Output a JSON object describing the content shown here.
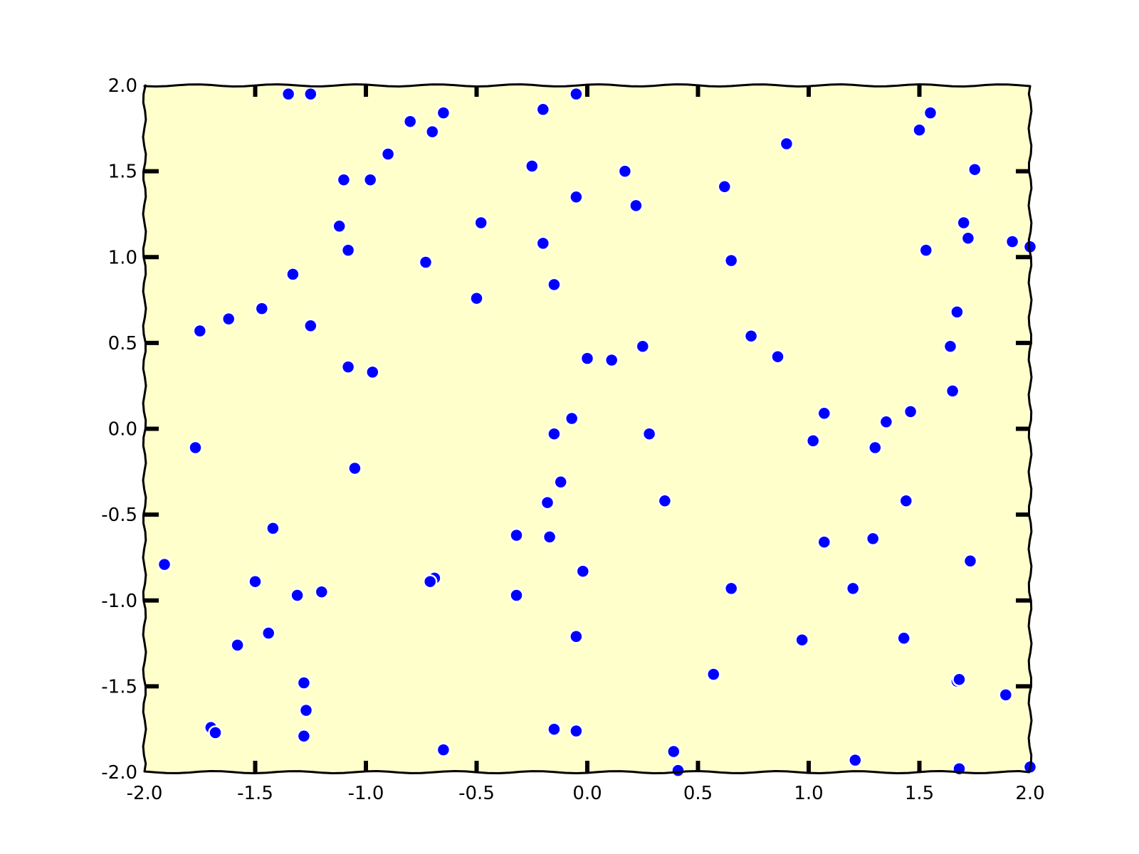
{
  "chart_data": {
    "type": "scatter",
    "title": "",
    "xlabel": "",
    "ylabel": "",
    "xlim": [
      -2.0,
      2.0
    ],
    "ylim": [
      -2.0,
      2.0
    ],
    "grid": false,
    "legend": "none",
    "colors": {
      "background": "#ffffcc",
      "marker": "#0000ff",
      "marker_edge": "#ffffff",
      "axes": "#000000"
    },
    "x_ticks": [
      "-2.0",
      "-1.5",
      "-1.0",
      "-0.5",
      "0.0",
      "0.5",
      "1.0",
      "1.5",
      "2.0"
    ],
    "y_ticks": [
      "-2.0",
      "-1.5",
      "-1.0",
      "-0.5",
      "0.0",
      "0.5",
      "1.0",
      "1.5",
      "2.0"
    ],
    "series": [
      {
        "points": [
          [
            -1.35,
            1.95
          ],
          [
            -1.25,
            1.95
          ],
          [
            -0.05,
            1.95
          ],
          [
            -0.8,
            1.79
          ],
          [
            -0.7,
            1.73
          ],
          [
            -0.65,
            1.84
          ],
          [
            -0.2,
            1.86
          ],
          [
            -0.9,
            1.6
          ],
          [
            -1.1,
            1.45
          ],
          [
            -0.98,
            1.45
          ],
          [
            -0.25,
            1.53
          ],
          [
            0.17,
            1.5
          ],
          [
            0.62,
            1.41
          ],
          [
            0.9,
            1.66
          ],
          [
            1.5,
            1.74
          ],
          [
            1.55,
            1.84
          ],
          [
            1.75,
            1.51
          ],
          [
            -0.05,
            1.35
          ],
          [
            0.22,
            1.3
          ],
          [
            -1.12,
            1.18
          ],
          [
            -0.48,
            1.2
          ],
          [
            1.7,
            1.2
          ],
          [
            -1.08,
            1.04
          ],
          [
            -0.2,
            1.08
          ],
          [
            1.53,
            1.04
          ],
          [
            1.72,
            1.11
          ],
          [
            1.92,
            1.09
          ],
          [
            2.0,
            1.06
          ],
          [
            -0.73,
            0.97
          ],
          [
            0.65,
            0.98
          ],
          [
            -1.33,
            0.9
          ],
          [
            -0.15,
            0.84
          ],
          [
            -0.5,
            0.76
          ],
          [
            -1.47,
            0.7
          ],
          [
            -1.62,
            0.64
          ],
          [
            -1.25,
            0.6
          ],
          [
            -1.75,
            0.57
          ],
          [
            1.67,
            0.68
          ],
          [
            0.74,
            0.54
          ],
          [
            0.25,
            0.48
          ],
          [
            0.86,
            0.42
          ],
          [
            1.64,
            0.48
          ],
          [
            0.0,
            0.41
          ],
          [
            0.11,
            0.4
          ],
          [
            -1.08,
            0.36
          ],
          [
            -0.97,
            0.33
          ],
          [
            1.65,
            0.22
          ],
          [
            -0.07,
            0.06
          ],
          [
            1.07,
            0.09
          ],
          [
            1.35,
            0.04
          ],
          [
            1.46,
            0.1
          ],
          [
            -0.15,
            -0.03
          ],
          [
            0.28,
            -0.03
          ],
          [
            1.02,
            -0.07
          ],
          [
            1.3,
            -0.11
          ],
          [
            -1.77,
            -0.11
          ],
          [
            -1.05,
            -0.23
          ],
          [
            -0.12,
            -0.31
          ],
          [
            -0.18,
            -0.43
          ],
          [
            0.35,
            -0.42
          ],
          [
            1.44,
            -0.42
          ],
          [
            -1.42,
            -0.58
          ],
          [
            -0.32,
            -0.62
          ],
          [
            -0.17,
            -0.63
          ],
          [
            1.07,
            -0.66
          ],
          [
            1.29,
            -0.64
          ],
          [
            -1.91,
            -0.79
          ],
          [
            -0.02,
            -0.83
          ],
          [
            -0.69,
            -0.87
          ],
          [
            -0.71,
            -0.89
          ],
          [
            -1.5,
            -0.89
          ],
          [
            1.73,
            -0.77
          ],
          [
            -1.31,
            -0.97
          ],
          [
            -1.2,
            -0.95
          ],
          [
            -0.32,
            -0.97
          ],
          [
            0.65,
            -0.93
          ],
          [
            1.2,
            -0.93
          ],
          [
            -1.44,
            -1.19
          ],
          [
            -1.58,
            -1.26
          ],
          [
            -0.05,
            -1.21
          ],
          [
            0.97,
            -1.23
          ],
          [
            1.43,
            -1.22
          ],
          [
            -1.28,
            -1.48
          ],
          [
            0.57,
            -1.43
          ],
          [
            1.67,
            -1.47
          ],
          [
            1.68,
            -1.46
          ],
          [
            1.89,
            -1.55
          ],
          [
            -1.27,
            -1.64
          ],
          [
            -1.7,
            -1.74
          ],
          [
            -1.68,
            -1.77
          ],
          [
            -1.28,
            -1.79
          ],
          [
            -0.15,
            -1.75
          ],
          [
            -0.05,
            -1.76
          ],
          [
            -0.65,
            -1.87
          ],
          [
            0.39,
            -1.88
          ],
          [
            0.41,
            -1.99
          ],
          [
            1.21,
            -1.93
          ],
          [
            1.68,
            -1.98
          ],
          [
            2.0,
            -1.97
          ]
        ]
      }
    ]
  }
}
